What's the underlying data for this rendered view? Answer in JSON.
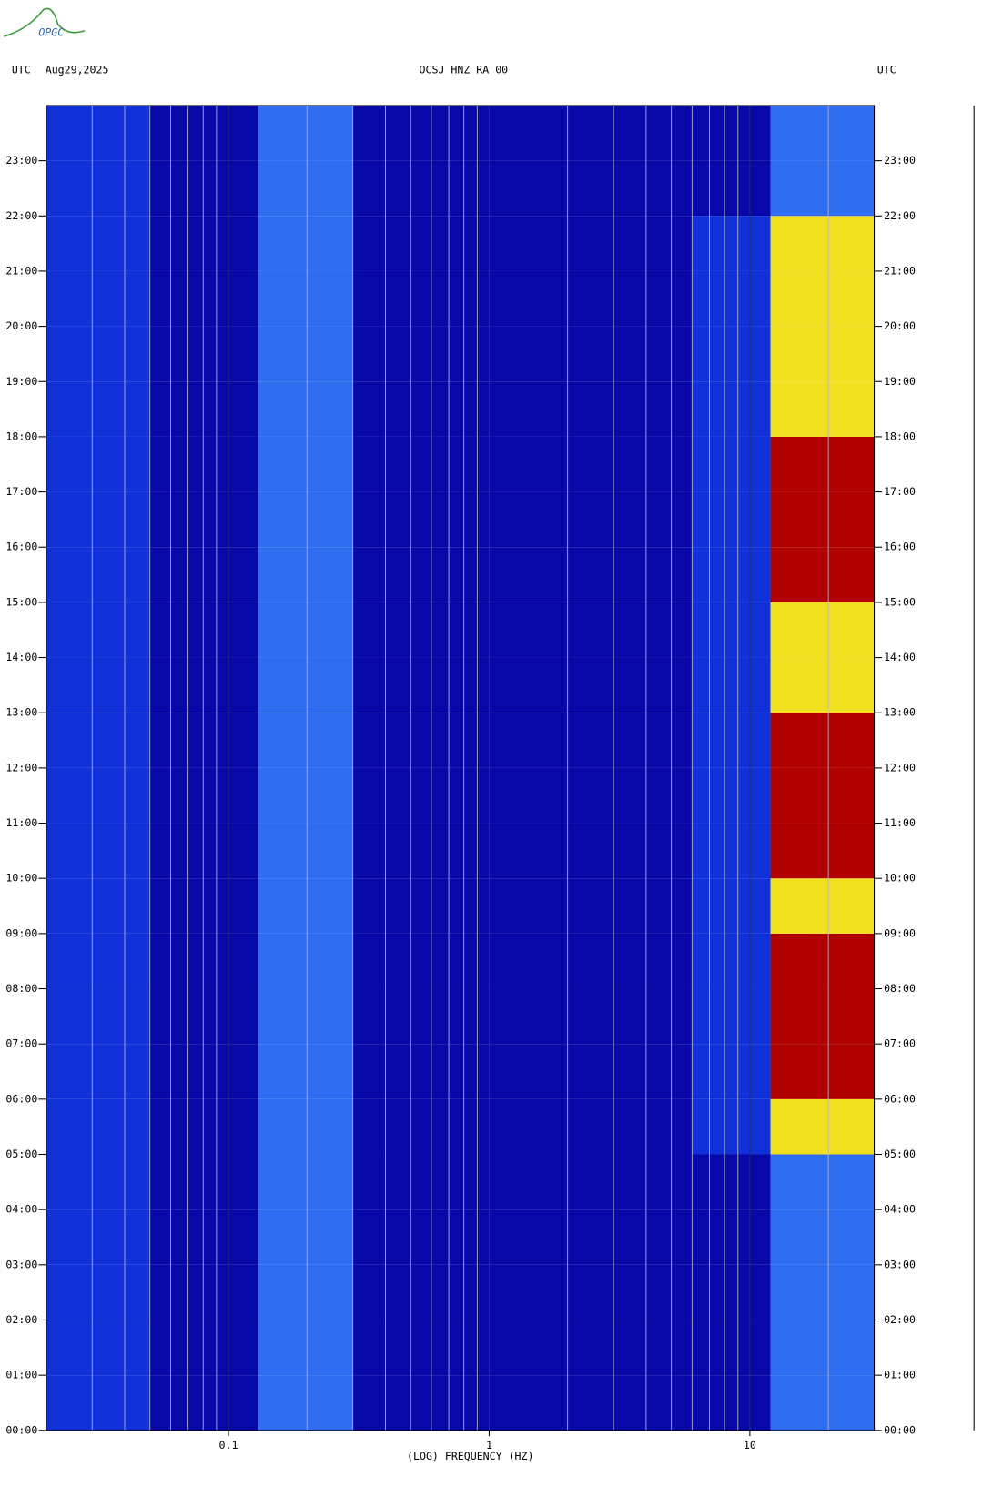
{
  "chart_data": {
    "type": "spectrogram",
    "logo": "OPGC",
    "left_label": "UTC",
    "date": "Aug29,2025",
    "title": "OCSJ HNZ RA 00",
    "right_label": "UTC",
    "xlabel": "(LOG) FREQUENCY (HZ)",
    "xscale": "log",
    "xlim": [
      0.02,
      30
    ],
    "xticks": [
      0.1,
      1,
      10
    ],
    "xminor": [
      0.03,
      0.04,
      0.05,
      0.06,
      0.07,
      0.08,
      0.09,
      0.2,
      0.3,
      0.4,
      0.5,
      0.6,
      0.7,
      0.8,
      0.9,
      2,
      3,
      4,
      5,
      6,
      7,
      8,
      9,
      20
    ],
    "ylim": [
      0,
      24
    ],
    "yticks": [
      {
        "value": 0,
        "label": "00:00"
      },
      {
        "value": 1,
        "label": "01:00"
      },
      {
        "value": 2,
        "label": "02:00"
      },
      {
        "value": 3,
        "label": "03:00"
      },
      {
        "value": 4,
        "label": "04:00"
      },
      {
        "value": 5,
        "label": "05:00"
      },
      {
        "value": 6,
        "label": "06:00"
      },
      {
        "value": 7,
        "label": "07:00"
      },
      {
        "value": 8,
        "label": "08:00"
      },
      {
        "value": 9,
        "label": "09:00"
      },
      {
        "value": 10,
        "label": "10:00"
      },
      {
        "value": 11,
        "label": "11:00"
      },
      {
        "value": 12,
        "label": "12:00"
      },
      {
        "value": 13,
        "label": "13:00"
      },
      {
        "value": 14,
        "label": "14:00"
      },
      {
        "value": 15,
        "label": "15:00"
      },
      {
        "value": 16,
        "label": "16:00"
      },
      {
        "value": 17,
        "label": "17:00"
      },
      {
        "value": 18,
        "label": "18:00"
      },
      {
        "value": 19,
        "label": "19:00"
      },
      {
        "value": 20,
        "label": "20:00"
      },
      {
        "value": 21,
        "label": "21:00"
      },
      {
        "value": 22,
        "label": "22:00"
      },
      {
        "value": 23,
        "label": "23:00"
      }
    ],
    "freq_bins": [
      0.02,
      0.05,
      0.13,
      0.3,
      6,
      12,
      30
    ],
    "hour_bins": [
      0,
      1,
      2,
      3,
      4,
      5,
      6,
      7,
      8,
      9,
      10,
      11,
      12,
      13,
      14,
      15,
      16,
      17,
      18,
      19,
      20,
      21,
      22,
      23,
      24
    ],
    "colors": [
      "#0808a8",
      "#1030d8",
      "#2e6cf0",
      "#f0e020",
      "#b00000"
    ],
    "z": [
      [
        1,
        0,
        2,
        0,
        0,
        2
      ],
      [
        1,
        0,
        2,
        0,
        0,
        2
      ],
      [
        1,
        0,
        2,
        0,
        0,
        2
      ],
      [
        1,
        0,
        2,
        0,
        0,
        2
      ],
      [
        1,
        0,
        2,
        0,
        0,
        2
      ],
      [
        1,
        0,
        2,
        0,
        1,
        3
      ],
      [
        1,
        0,
        2,
        0,
        1,
        4
      ],
      [
        1,
        0,
        2,
        0,
        1,
        4
      ],
      [
        1,
        0,
        2,
        0,
        1,
        4
      ],
      [
        1,
        0,
        2,
        0,
        1,
        3
      ],
      [
        1,
        0,
        2,
        0,
        1,
        4
      ],
      [
        1,
        0,
        2,
        0,
        1,
        4
      ],
      [
        1,
        0,
        2,
        0,
        1,
        4
      ],
      [
        1,
        0,
        2,
        0,
        1,
        3
      ],
      [
        1,
        0,
        2,
        0,
        1,
        3
      ],
      [
        1,
        0,
        2,
        0,
        1,
        4
      ],
      [
        1,
        0,
        2,
        0,
        1,
        4
      ],
      [
        1,
        0,
        2,
        0,
        1,
        4
      ],
      [
        1,
        0,
        2,
        0,
        1,
        3
      ],
      [
        1,
        0,
        2,
        0,
        1,
        3
      ],
      [
        1,
        0,
        2,
        0,
        1,
        3
      ],
      [
        1,
        0,
        2,
        0,
        1,
        3
      ],
      [
        1,
        0,
        2,
        0,
        0,
        2
      ],
      [
        1,
        0,
        2,
        0,
        0,
        2
      ]
    ]
  }
}
